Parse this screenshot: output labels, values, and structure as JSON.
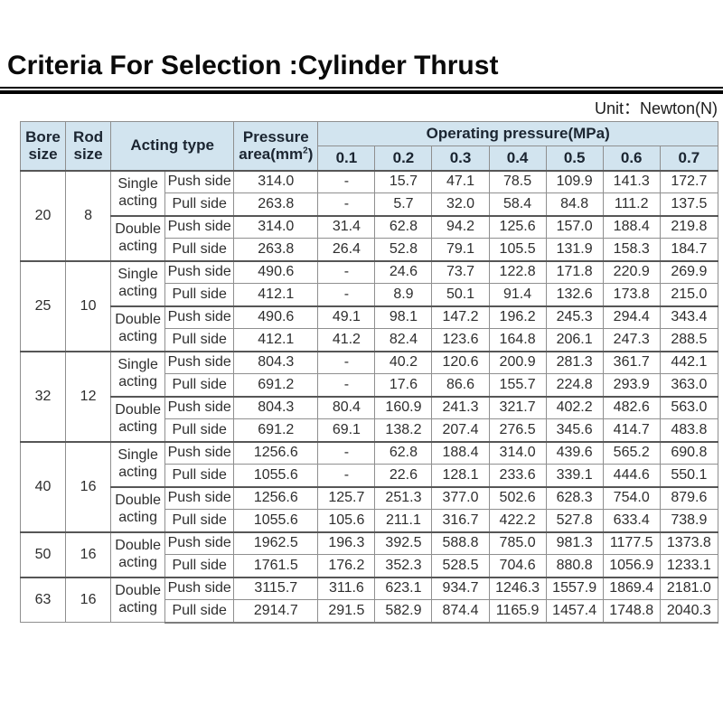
{
  "page": {
    "title": "Criteria For Selection :Cylinder Thrust",
    "unit_label": "Unit：Newton(N)"
  },
  "colors": {
    "header_bg": "#d2e4ef",
    "border": "#8f8f8f",
    "heavy_border": "#565656",
    "title_text": "#0a0a0a",
    "header_text": "#1b2531",
    "body_text": "#2e2e2e"
  },
  "table": {
    "headers": {
      "bore": "Bore size",
      "rod": "Rod size",
      "acting": "Acting type",
      "pressure_area_top": "Pressure",
      "pressure_area_prefix": "area(mm",
      "pressure_area_sup": "2",
      "pressure_area_suffix": ")",
      "operating_pressure": "Operating pressure(MPa)",
      "pressures": [
        "0.1",
        "0.2",
        "0.3",
        "0.4",
        "0.5",
        "0.6",
        "0.7"
      ]
    },
    "groups": [
      {
        "bore": "20",
        "rod": "8",
        "blocks": [
          {
            "acting": "Single acting",
            "rows": [
              {
                "side": "Push side",
                "area": "314.0",
                "values": [
                  "-",
                  "15.7",
                  "47.1",
                  "78.5",
                  "109.9",
                  "141.3",
                  "172.7"
                ]
              },
              {
                "side": "Pull side",
                "area": "263.8",
                "values": [
                  "-",
                  "5.7",
                  "32.0",
                  "58.4",
                  "84.8",
                  "111.2",
                  "137.5"
                ]
              }
            ]
          },
          {
            "acting": "Double acting",
            "rows": [
              {
                "side": "Push side",
                "area": "314.0",
                "values": [
                  "31.4",
                  "62.8",
                  "94.2",
                  "125.6",
                  "157.0",
                  "188.4",
                  "219.8"
                ]
              },
              {
                "side": "Pull side",
                "area": "263.8",
                "values": [
                  "26.4",
                  "52.8",
                  "79.1",
                  "105.5",
                  "131.9",
                  "158.3",
                  "184.7"
                ]
              }
            ]
          }
        ]
      },
      {
        "bore": "25",
        "rod": "10",
        "blocks": [
          {
            "acting": "Single acting",
            "rows": [
              {
                "side": "Push side",
                "area": "490.6",
                "values": [
                  "-",
                  "24.6",
                  "73.7",
                  "122.8",
                  "171.8",
                  "220.9",
                  "269.9"
                ]
              },
              {
                "side": "Pull side",
                "area": "412.1",
                "values": [
                  "-",
                  "8.9",
                  "50.1",
                  "91.4",
                  "132.6",
                  "173.8",
                  "215.0"
                ]
              }
            ]
          },
          {
            "acting": "Double acting",
            "rows": [
              {
                "side": "Push side",
                "area": "490.6",
                "values": [
                  "49.1",
                  "98.1",
                  "147.2",
                  "196.2",
                  "245.3",
                  "294.4",
                  "343.4"
                ]
              },
              {
                "side": "Pull side",
                "area": "412.1",
                "values": [
                  "41.2",
                  "82.4",
                  "123.6",
                  "164.8",
                  "206.1",
                  "247.3",
                  "288.5"
                ]
              }
            ]
          }
        ]
      },
      {
        "bore": "32",
        "rod": "12",
        "blocks": [
          {
            "acting": "Single acting",
            "rows": [
              {
                "side": "Push side",
                "area": "804.3",
                "values": [
                  "-",
                  "40.2",
                  "120.6",
                  "200.9",
                  "281.3",
                  "361.7",
                  "442.1"
                ]
              },
              {
                "side": "Pull side",
                "area": "691.2",
                "values": [
                  "-",
                  "17.6",
                  "86.6",
                  "155.7",
                  "224.8",
                  "293.9",
                  "363.0"
                ]
              }
            ]
          },
          {
            "acting": "Double acting",
            "rows": [
              {
                "side": "Push side",
                "area": "804.3",
                "values": [
                  "80.4",
                  "160.9",
                  "241.3",
                  "321.7",
                  "402.2",
                  "482.6",
                  "563.0"
                ]
              },
              {
                "side": "Pull side",
                "area": "691.2",
                "values": [
                  "69.1",
                  "138.2",
                  "207.4",
                  "276.5",
                  "345.6",
                  "414.7",
                  "483.8"
                ]
              }
            ]
          }
        ]
      },
      {
        "bore": "40",
        "rod": "16",
        "blocks": [
          {
            "acting": "Single acting",
            "rows": [
              {
                "side": "Push side",
                "area": "1256.6",
                "values": [
                  "-",
                  "62.8",
                  "188.4",
                  "314.0",
                  "439.6",
                  "565.2",
                  "690.8"
                ]
              },
              {
                "side": "Pull side",
                "area": "1055.6",
                "values": [
                  "-",
                  "22.6",
                  "128.1",
                  "233.6",
                  "339.1",
                  "444.6",
                  "550.1"
                ]
              }
            ]
          },
          {
            "acting": "Double acting",
            "rows": [
              {
                "side": "Push side",
                "area": "1256.6",
                "values": [
                  "125.7",
                  "251.3",
                  "377.0",
                  "502.6",
                  "628.3",
                  "754.0",
                  "879.6"
                ]
              },
              {
                "side": "Pull side",
                "area": "1055.6",
                "values": [
                  "105.6",
                  "211.1",
                  "316.7",
                  "422.2",
                  "527.8",
                  "633.4",
                  "738.9"
                ]
              }
            ]
          }
        ]
      },
      {
        "bore": "50",
        "rod": "16",
        "blocks": [
          {
            "acting": "Double acting",
            "rows": [
              {
                "side": "Push side",
                "area": "1962.5",
                "values": [
                  "196.3",
                  "392.5",
                  "588.8",
                  "785.0",
                  "981.3",
                  "1177.5",
                  "1373.8"
                ]
              },
              {
                "side": "Pull side",
                "area": "1761.5",
                "values": [
                  "176.2",
                  "352.3",
                  "528.5",
                  "704.6",
                  "880.8",
                  "1056.9",
                  "1233.1"
                ]
              }
            ]
          }
        ]
      },
      {
        "bore": "63",
        "rod": "16",
        "blocks": [
          {
            "acting": "Double acting",
            "rows": [
              {
                "side": "Push side",
                "area": "3115.7",
                "values": [
                  "311.6",
                  "623.1",
                  "934.7",
                  "1246.3",
                  "1557.9",
                  "1869.4",
                  "2181.0"
                ]
              },
              {
                "side": "Pull side",
                "area": "2914.7",
                "values": [
                  "291.5",
                  "582.9",
                  "874.4",
                  "1165.9",
                  "1457.4",
                  "1748.8",
                  "2040.3"
                ]
              }
            ]
          }
        ]
      }
    ]
  }
}
